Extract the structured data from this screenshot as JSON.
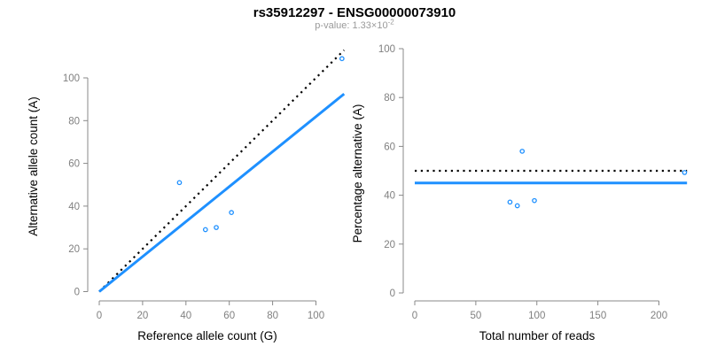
{
  "header": {
    "title": "rs35912297 - ENSG00000073910",
    "subtitle_text": "p-value: 1.33×10",
    "subtitle_exponent": "-2"
  },
  "colors": {
    "background": "#FFFFFF",
    "accent_blue": "#1E90FF",
    "line_black": "#000000",
    "axis_gray": "#888888",
    "tick_label_gray": "#808080",
    "title_black": "#000000",
    "subtitle_gray": "#9A9A9A"
  },
  "chart_data": [
    {
      "type": "scatter",
      "name": "allele-counts-scatter",
      "xlabel": "Reference allele count (G)",
      "ylabel": "Alternative allele count (A)",
      "xlim": [
        0,
        113
      ],
      "ylim": [
        0,
        113
      ],
      "xticks": [
        0,
        20,
        40,
        60,
        80,
        100
      ],
      "yticks": [
        0,
        20,
        40,
        60,
        80,
        100
      ],
      "grid": false,
      "points": [
        {
          "x": 37,
          "y": 51
        },
        {
          "x": 49,
          "y": 29
        },
        {
          "x": 54,
          "y": 30
        },
        {
          "x": 61,
          "y": 37
        },
        {
          "x": 112,
          "y": 109
        }
      ],
      "lines": [
        {
          "name": "expected-identity-line",
          "style": "dotted",
          "color": "#000000",
          "x1": 0,
          "y1": 0,
          "x2": 113,
          "y2": 113
        },
        {
          "name": "fitted-proportion-line",
          "style": "solid",
          "color": "#1E90FF",
          "x1": 0,
          "y1": 0,
          "x2": 113,
          "y2": 92.5
        }
      ]
    },
    {
      "type": "scatter",
      "name": "percentage-vs-coverage-scatter",
      "xlabel": "Total number of reads",
      "ylabel": "Percentage alternative (A)",
      "xlim": [
        0,
        224
      ],
      "ylim": [
        0,
        100
      ],
      "xticks": [
        0,
        50,
        100,
        150,
        200
      ],
      "yticks": [
        0,
        20,
        40,
        60,
        80,
        100
      ],
      "grid": false,
      "points": [
        {
          "x": 78,
          "y": 37.2
        },
        {
          "x": 84,
          "y": 35.7
        },
        {
          "x": 88,
          "y": 58.0
        },
        {
          "x": 98,
          "y": 37.8
        },
        {
          "x": 221,
          "y": 49.3
        }
      ],
      "lines": [
        {
          "name": "expected-50pct-line",
          "style": "dotted",
          "color": "#000000",
          "x1": 0,
          "y1": 50,
          "x2": 223,
          "y2": 50
        },
        {
          "name": "fitted-45pct-line",
          "style": "solid",
          "color": "#1E90FF",
          "x1": 0,
          "y1": 45,
          "x2": 223,
          "y2": 45
        }
      ]
    }
  ]
}
